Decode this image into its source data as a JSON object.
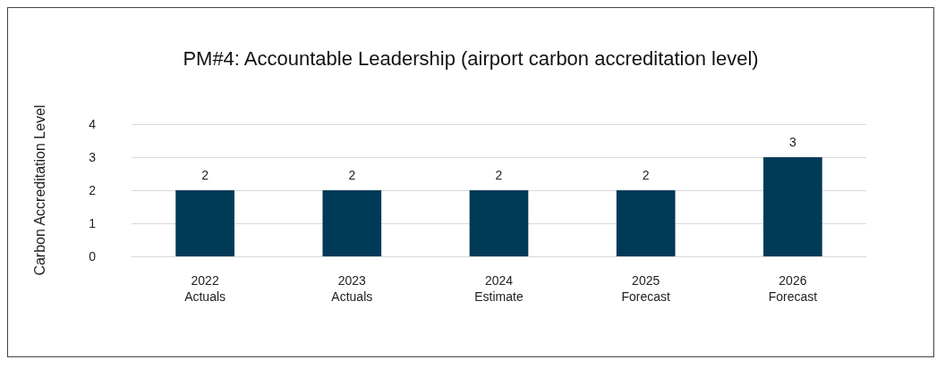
{
  "chart_data": {
    "type": "bar",
    "title": "PM#4: Accountable Leadership (airport carbon accreditation level)",
    "ylabel": "Carbon Accreditation Level",
    "categories": [
      "2022\nActuals",
      "2023\nActuals",
      "2024\nEstimate",
      "2025\nForecast",
      "2026\nForecast"
    ],
    "values": [
      2,
      2,
      2,
      2,
      3
    ],
    "color": "#003a57",
    "ylim": [
      0,
      4
    ],
    "yticks": [
      0,
      1,
      2,
      3,
      4
    ],
    "grid": "y",
    "data_labels": true
  }
}
